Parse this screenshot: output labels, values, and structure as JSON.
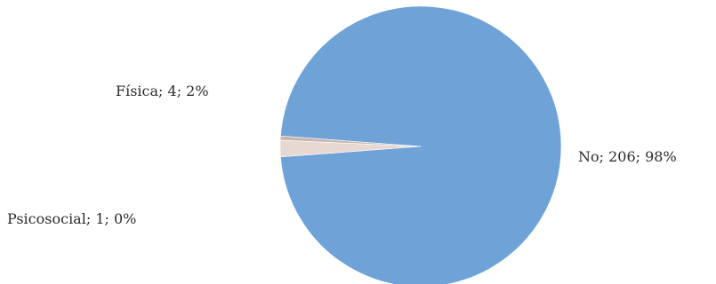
{
  "chart_data": {
    "type": "pie",
    "title": "",
    "slices": [
      {
        "name": "No",
        "value": 206,
        "percent": 98,
        "label": "No; 206; 98%",
        "color": "#6fa3d8"
      },
      {
        "name": "Física",
        "value": 4,
        "percent": 2,
        "label": "Física; 4; 2%",
        "color": "#e8d8d2"
      },
      {
        "name": "Psicosocial",
        "value": 1,
        "percent": 0,
        "label": "Psicosocial; 1; 0%",
        "color": "#c9b5ad"
      }
    ],
    "legend": "none"
  }
}
